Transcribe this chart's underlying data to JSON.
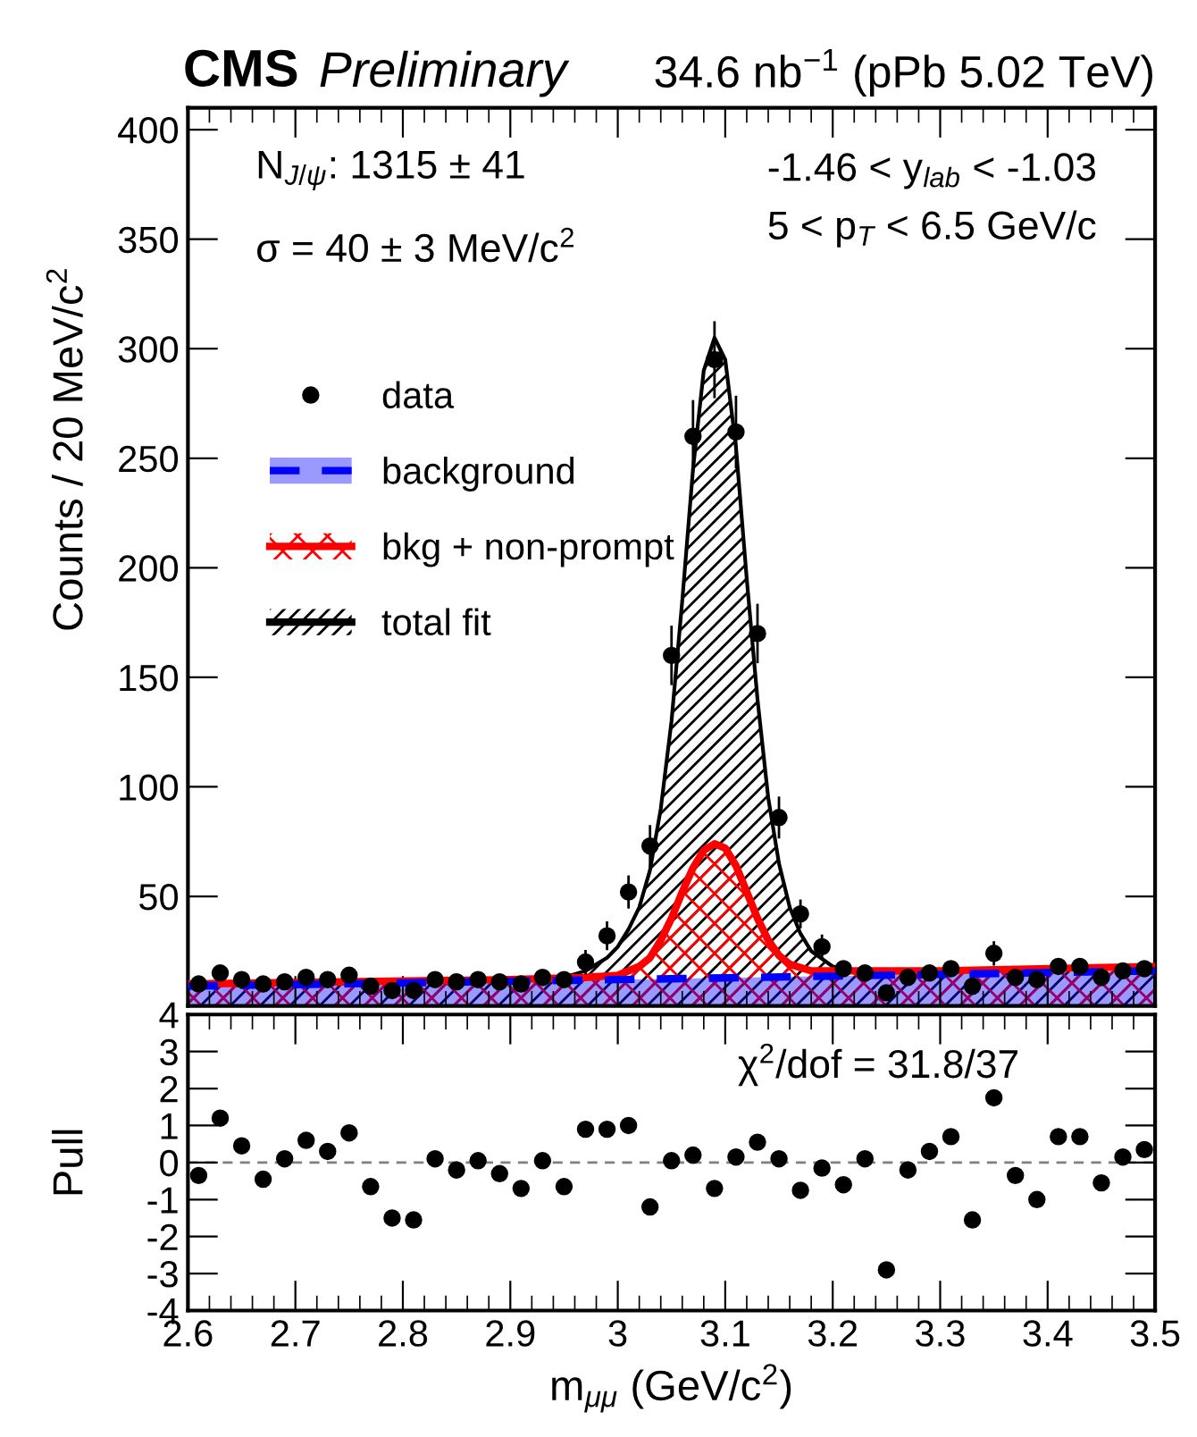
{
  "chart_data": [
    {
      "type": "scatter",
      "title": "CMS",
      "subtitle": "Preliminary",
      "ylabel": "Counts / 20 MeV/c$^{2}$",
      "annotations": [
        "34.6 nb$^{−1}$ (pPb 5.02 TeV)",
        "N$_{J/ψ}$: 1315 ± 41",
        "σ = 40 ± 3 MeV/c$^{2}$",
        "-1.46 < y$_{lab}$ < -1.03",
        "5 < p$_{T}$ < 6.5 GeV/c"
      ],
      "xlim": [
        2.6,
        3.5
      ],
      "ylim": [
        0,
        410
      ],
      "yticks": [
        50,
        100,
        150,
        200,
        250,
        300,
        350,
        400
      ],
      "xticks": [
        {
          "value": 2.6,
          "label": null
        },
        {
          "value": 2.7,
          "label": null
        },
        {
          "value": 2.8,
          "label": null
        },
        {
          "value": 2.9,
          "label": null
        },
        {
          "value": 3.0,
          "label": null
        },
        {
          "value": 3.1,
          "label": null
        },
        {
          "value": 3.2,
          "label": null
        },
        {
          "value": 3.3,
          "label": null
        },
        {
          "value": 3.4,
          "label": null
        },
        {
          "value": 3.5,
          "label": null
        }
      ],
      "tick_labels": "y",
      "legend": "left",
      "grid": false,
      "series": [
        {
          "name": "total fit",
          "type": "area",
          "color": "#000000",
          "line_style": "solid",
          "x": [
            2.6,
            2.7,
            2.8,
            2.9,
            2.95,
            2.97,
            2.99,
            3.0,
            3.01,
            3.02,
            3.03,
            3.04,
            3.05,
            3.06,
            3.07,
            3.08,
            3.09,
            3.1,
            3.11,
            3.12,
            3.13,
            3.14,
            3.15,
            3.16,
            3.17,
            3.18,
            3.2,
            3.22,
            3.25,
            3.3,
            3.4,
            3.5
          ],
          "values": [
            10,
            11,
            11,
            12,
            13,
            16,
            22,
            27,
            35,
            45,
            62,
            90,
            130,
            185,
            245,
            290,
            305,
            295,
            255,
            195,
            140,
            95,
            65,
            45,
            33,
            25,
            18,
            16,
            15,
            16,
            17,
            18
          ]
        },
        {
          "name": "bkg + non-prompt",
          "type": "area",
          "color": "#ff0000",
          "line_style": "solid",
          "x": [
            2.6,
            2.9,
            2.97,
            3.0,
            3.02,
            3.03,
            3.04,
            3.05,
            3.06,
            3.07,
            3.08,
            3.09,
            3.1,
            3.11,
            3.12,
            3.13,
            3.14,
            3.15,
            3.16,
            3.18,
            3.2,
            3.3,
            3.5
          ],
          "values": [
            10,
            12,
            13,
            14,
            18,
            22,
            30,
            40,
            52,
            63,
            71,
            74,
            72,
            64,
            52,
            40,
            30,
            23,
            19,
            16,
            16,
            16,
            18
          ]
        },
        {
          "name": "background",
          "type": "area",
          "color": "#0000ff",
          "line_style": "dashed",
          "x": [
            2.6,
            3.0,
            3.5
          ],
          "values": [
            9,
            12,
            16
          ]
        },
        {
          "name": "data",
          "color": "#000000",
          "marker": "circle",
          "x": [
            2.61,
            2.63,
            2.65,
            2.67,
            2.69,
            2.71,
            2.73,
            2.75,
            2.77,
            2.79,
            2.81,
            2.83,
            2.85,
            2.87,
            2.89,
            2.91,
            2.93,
            2.95,
            2.97,
            2.99,
            3.01,
            3.03,
            3.05,
            3.07,
            3.09,
            3.11,
            3.13,
            3.15,
            3.17,
            3.19,
            3.21,
            3.23,
            3.25,
            3.27,
            3.29,
            3.31,
            3.33,
            3.35,
            3.37,
            3.39,
            3.41,
            3.43,
            3.45,
            3.47,
            3.49
          ],
          "values": [
            10,
            15,
            12,
            10,
            11,
            13,
            12,
            14,
            9,
            7,
            7,
            12,
            11,
            12,
            11,
            10,
            13,
            12,
            20,
            32,
            52,
            73,
            160,
            260,
            295,
            262,
            170,
            86,
            42,
            27,
            17,
            15,
            6,
            13,
            15,
            17,
            9,
            24,
            13,
            12,
            18,
            18,
            13,
            16,
            17
          ],
          "errors": [
            null,
            null,
            null,
            null,
            null,
            null,
            null,
            null,
            null,
            null,
            null,
            null,
            null,
            null,
            null,
            null,
            null,
            null,
            5,
            6,
            7,
            9,
            13,
            16,
            17,
            16,
            13,
            9,
            6,
            5,
            null,
            null,
            null,
            null,
            null,
            null,
            null,
            5,
            null,
            null,
            null,
            null,
            null,
            null,
            null
          ]
        }
      ]
    },
    {
      "type": "scatter",
      "xlabel": "m$_{μμ}$ (GeV/c$^{2}$)",
      "ylabel": "Pull",
      "annotations": [
        "χ$^{2}$/dof = 31.8/37"
      ],
      "xlim": [
        2.6,
        3.5
      ],
      "xticks": [
        {
          "value": 2.6,
          "label": "2.6"
        },
        {
          "value": 2.7,
          "label": "2.7"
        },
        {
          "value": 2.8,
          "label": "2.8"
        },
        {
          "value": 2.9,
          "label": "2.9"
        },
        {
          "value": 3.0,
          "label": "3"
        },
        {
          "value": 3.1,
          "label": "3.1"
        },
        {
          "value": 3.2,
          "label": "3.2"
        },
        {
          "value": 3.3,
          "label": "3.3"
        },
        {
          "value": 3.4,
          "label": "3.4"
        },
        {
          "value": 3.5,
          "label": "3.5"
        }
      ],
      "ylim": [
        -4,
        4
      ],
      "yticks": [
        -4,
        -3,
        -2,
        -1,
        0,
        1,
        2,
        3,
        4
      ],
      "grid": false,
      "legend": false,
      "ref_lines": [
        {
          "axis": "y",
          "value": 0,
          "color": "#808080",
          "line_style": "dashed"
        }
      ],
      "series": [
        {
          "color": "#000000",
          "marker": "circle",
          "x": [
            2.61,
            2.63,
            2.65,
            2.67,
            2.69,
            2.71,
            2.73,
            2.75,
            2.77,
            2.79,
            2.81,
            2.83,
            2.85,
            2.87,
            2.89,
            2.91,
            2.93,
            2.95,
            2.97,
            2.99,
            3.01,
            3.03,
            3.05,
            3.07,
            3.09,
            3.11,
            3.13,
            3.15,
            3.17,
            3.19,
            3.21,
            3.23,
            3.25,
            3.27,
            3.29,
            3.31,
            3.33,
            3.35,
            3.37,
            3.39,
            3.41,
            3.43,
            3.45,
            3.47,
            3.49
          ],
          "values": [
            -0.35,
            1.2,
            0.45,
            -0.45,
            0.1,
            0.6,
            0.3,
            0.8,
            -0.65,
            -1.5,
            -1.55,
            0.1,
            -0.2,
            0.05,
            -0.3,
            -0.7,
            0.05,
            -0.65,
            0.9,
            0.9,
            1.0,
            -1.2,
            0.05,
            0.2,
            -0.7,
            0.15,
            0.55,
            0.1,
            -0.75,
            -0.15,
            -0.6,
            0.1,
            -2.9,
            -0.2,
            0.3,
            0.7,
            -1.55,
            1.75,
            -0.35,
            -1.0,
            0.7,
            0.7,
            -0.55,
            0.15,
            0.35
          ]
        }
      ]
    }
  ]
}
